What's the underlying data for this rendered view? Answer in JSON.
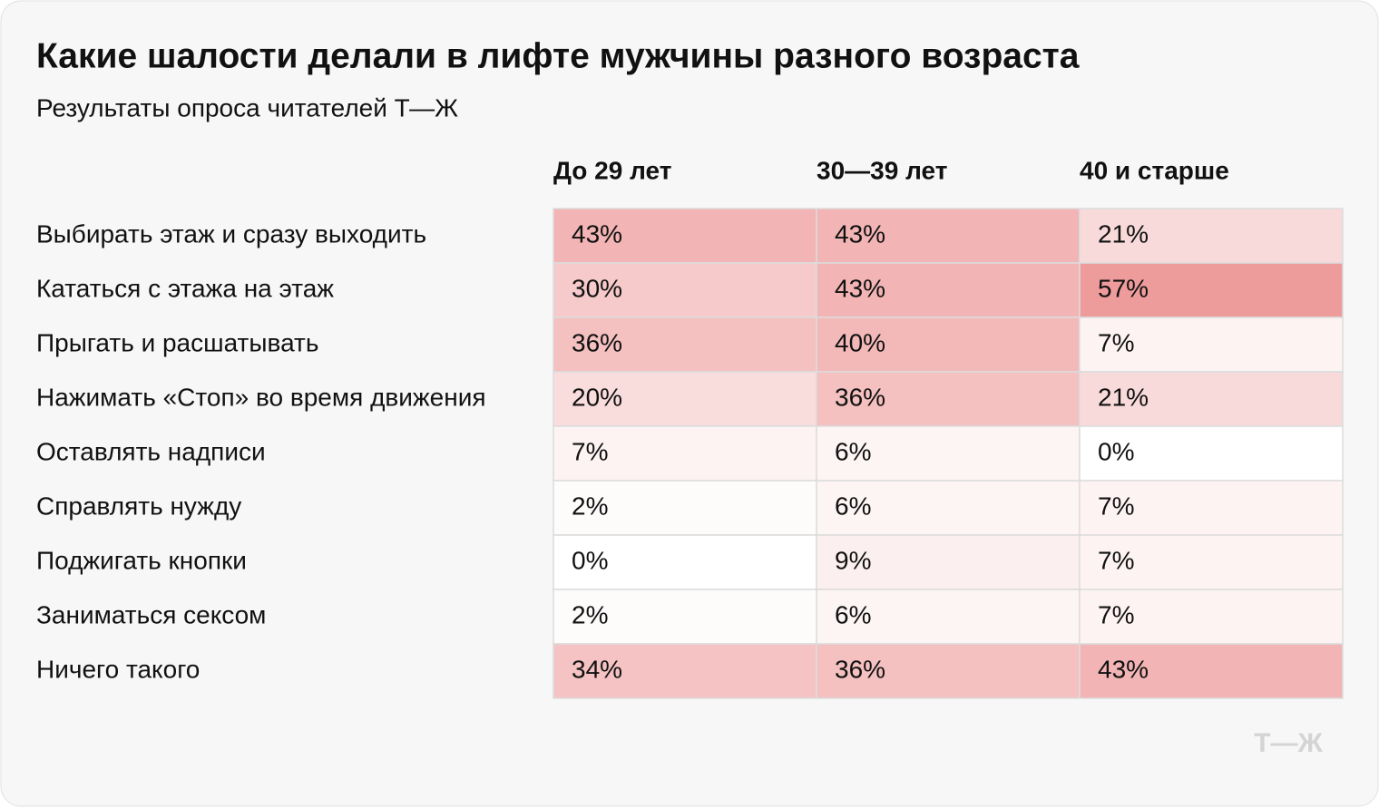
{
  "chart_data": {
    "type": "heatmap",
    "title": "Какие шалости делали в лифте мужчины разного возраста",
    "subtitle": "Результаты опроса читателей Т—Ж",
    "columns": [
      "До 29 лет",
      "30—39 лет",
      "40 и старше"
    ],
    "rows": [
      "Выбирать этаж и сразу выходить",
      "Кататься с этажа на этаж",
      "Прыгать и расшатывать",
      "Нажимать «Стоп» во время движения",
      "Оставлять надписи",
      "Справлять нужду",
      "Поджигать кнопки",
      "Заниматься сексом",
      "Ничего такого"
    ],
    "values": [
      [
        43,
        43,
        21
      ],
      [
        30,
        43,
        57
      ],
      [
        36,
        40,
        7
      ],
      [
        20,
        36,
        21
      ],
      [
        7,
        6,
        0
      ],
      [
        2,
        6,
        7
      ],
      [
        0,
        9,
        7
      ],
      [
        2,
        6,
        7
      ],
      [
        34,
        36,
        43
      ]
    ],
    "value_labels": [
      [
        "43%",
        "43%",
        "21%"
      ],
      [
        "30%",
        "43%",
        "57%"
      ],
      [
        "36%",
        "40%",
        "7%"
      ],
      [
        "20%",
        "36%",
        "21%"
      ],
      [
        "7%",
        "6%",
        "0%"
      ],
      [
        "2%",
        "6%",
        "7%"
      ],
      [
        "0%",
        "9%",
        "7%"
      ],
      [
        "2%",
        "6%",
        "7%"
      ],
      [
        "34%",
        "36%",
        "43%"
      ]
    ],
    "color": "#ee9b9b"
  },
  "logo": "Т—Ж"
}
